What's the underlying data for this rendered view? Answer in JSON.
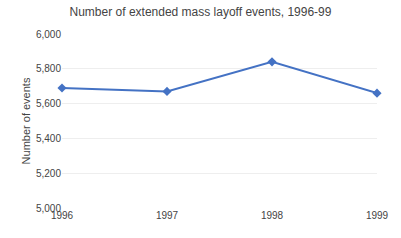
{
  "chart_data": {
    "type": "line",
    "title": "Number of extended mass layoff events, 1996-99",
    "ylabel": "Number of events",
    "x": [
      1996,
      1997,
      1998,
      1999
    ],
    "values": [
      5690,
      5670,
      5840,
      5660
    ],
    "color": "#4472C4",
    "marker": "diamond",
    "xlim": [
      1996,
      1999
    ],
    "xticks": [
      1996,
      1997,
      1998,
      1999
    ],
    "ylim": [
      5000,
      6000
    ],
    "yticks": [
      {
        "value": 5000,
        "label": "5,000"
      },
      {
        "value": 5200,
        "label": "5,200"
      },
      {
        "value": 5400,
        "label": "5,400"
      },
      {
        "value": 5600,
        "label": "5,600"
      },
      {
        "value": 5800,
        "label": "5,800"
      },
      {
        "value": 6000,
        "label": "6,000"
      }
    ],
    "grid": "y"
  }
}
